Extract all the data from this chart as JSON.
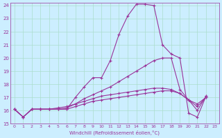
{
  "xlabel": "Windchill (Refroidissement éolien,°C)",
  "background_color": "#cceeff",
  "grid_color": "#aaddcc",
  "line_color": "#993399",
  "x_min": 0,
  "x_max": 23,
  "y_min": 15,
  "y_max": 24,
  "lines": [
    [
      16.1,
      15.5,
      16.1,
      16.1,
      16.1,
      16.1,
      16.1,
      17.0,
      17.8,
      18.5,
      18.5,
      19.8,
      21.8,
      23.2,
      24.1,
      24.1,
      24.0,
      21.0,
      20.3,
      20.0,
      15.8,
      15.5,
      17.1
    ],
    [
      16.1,
      15.5,
      16.1,
      16.1,
      16.1,
      16.1,
      16.2,
      16.5,
      16.9,
      17.2,
      17.5,
      17.8,
      18.2,
      18.6,
      19.0,
      19.4,
      19.8,
      20.0,
      20.0,
      17.6,
      16.8,
      16.0,
      17.1
    ],
    [
      16.1,
      15.5,
      16.1,
      16.1,
      16.1,
      16.1,
      16.1,
      16.3,
      16.5,
      16.7,
      16.8,
      16.9,
      17.0,
      17.1,
      17.2,
      17.3,
      17.4,
      17.5,
      17.5,
      17.3,
      16.8,
      16.5,
      17.0
    ],
    [
      16.1,
      15.5,
      16.1,
      16.1,
      16.1,
      16.2,
      16.3,
      16.5,
      16.7,
      16.9,
      17.1,
      17.2,
      17.3,
      17.4,
      17.5,
      17.6,
      17.7,
      17.7,
      17.6,
      17.3,
      16.8,
      16.3,
      17.0
    ]
  ]
}
